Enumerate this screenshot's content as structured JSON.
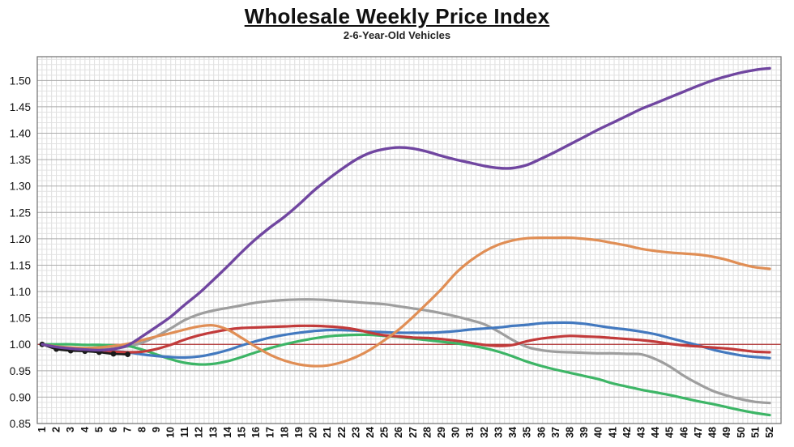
{
  "header": {
    "title": "Wholesale Weekly Price Index",
    "subtitle": "2-6-Year-Old Vehicles"
  },
  "chart_data": {
    "type": "line",
    "title": "Wholesale Weekly Price Index",
    "subtitle": "2-6-Year-Old Vehicles",
    "xlabel": "",
    "ylabel": "",
    "legend_position": "none",
    "grid": "on",
    "x_ticks": [
      1,
      2,
      3,
      4,
      5,
      6,
      7,
      8,
      9,
      10,
      11,
      12,
      13,
      14,
      15,
      16,
      17,
      18,
      19,
      20,
      21,
      22,
      23,
      24,
      25,
      26,
      27,
      28,
      29,
      30,
      31,
      32,
      33,
      34,
      35,
      36,
      37,
      38,
      39,
      40,
      41,
      42,
      43,
      44,
      45,
      46,
      47,
      48,
      49,
      50,
      51,
      52
    ],
    "y_ticks": [
      0.85,
      0.9,
      0.95,
      1.0,
      1.05,
      1.1,
      1.15,
      1.2,
      1.25,
      1.3,
      1.35,
      1.4,
      1.45,
      1.5
    ],
    "ylim": [
      0.85,
      1.545
    ],
    "minor_y_step": 0.01,
    "major_y_step": 0.05,
    "reference_line": {
      "y": 1.0,
      "color": "#b03030"
    },
    "series": [
      {
        "name": "gray",
        "color": "#9e9e9e",
        "width": 3.2,
        "markers": false,
        "values": [
          1.0,
          0.995,
          0.992,
          0.991,
          0.99,
          0.992,
          0.996,
          1.003,
          1.015,
          1.03,
          1.046,
          1.057,
          1.064,
          1.069,
          1.074,
          1.079,
          1.082,
          1.084,
          1.085,
          1.085,
          1.084,
          1.082,
          1.08,
          1.078,
          1.076,
          1.072,
          1.068,
          1.064,
          1.059,
          1.053,
          1.046,
          1.038,
          1.024,
          1.008,
          0.995,
          0.989,
          0.986,
          0.985,
          0.984,
          0.983,
          0.983,
          0.982,
          0.981,
          0.972,
          0.958,
          0.94,
          0.925,
          0.912,
          0.903,
          0.896,
          0.891,
          0.889
        ]
      },
      {
        "name": "green",
        "color": "#3db566",
        "width": 3.2,
        "markers": false,
        "values": [
          1.0,
          1.0,
          1.0,
          0.999,
          0.999,
          0.998,
          0.997,
          0.99,
          0.981,
          0.972,
          0.965,
          0.962,
          0.963,
          0.968,
          0.976,
          0.985,
          0.993,
          1.0,
          1.006,
          1.011,
          1.015,
          1.017,
          1.018,
          1.018,
          1.016,
          1.014,
          1.011,
          1.008,
          1.005,
          1.002,
          0.998,
          0.993,
          0.986,
          0.977,
          0.967,
          0.959,
          0.952,
          0.946,
          0.94,
          0.934,
          0.926,
          0.92,
          0.914,
          0.909,
          0.904,
          0.898,
          0.892,
          0.887,
          0.881,
          0.875,
          0.87,
          0.866
        ]
      },
      {
        "name": "blue",
        "color": "#4379bf",
        "width": 3.2,
        "markers": false,
        "values": [
          1.0,
          0.995,
          0.992,
          0.99,
          0.988,
          0.987,
          0.985,
          0.981,
          0.978,
          0.976,
          0.975,
          0.977,
          0.982,
          0.989,
          0.998,
          1.006,
          1.013,
          1.018,
          1.022,
          1.025,
          1.027,
          1.027,
          1.026,
          1.024,
          1.023,
          1.022,
          1.022,
          1.022,
          1.023,
          1.025,
          1.028,
          1.03,
          1.032,
          1.035,
          1.037,
          1.04,
          1.041,
          1.041,
          1.039,
          1.035,
          1.031,
          1.028,
          1.024,
          1.019,
          1.012,
          1.005,
          0.998,
          0.99,
          0.984,
          0.979,
          0.976,
          0.974
        ]
      },
      {
        "name": "red",
        "color": "#c23b3b",
        "width": 3.2,
        "markers": false,
        "values": [
          1.0,
          0.994,
          0.99,
          0.989,
          0.987,
          0.986,
          0.985,
          0.986,
          0.991,
          0.999,
          1.009,
          1.017,
          1.023,
          1.028,
          1.031,
          1.032,
          1.033,
          1.034,
          1.035,
          1.035,
          1.034,
          1.032,
          1.028,
          1.022,
          1.017,
          1.015,
          1.013,
          1.012,
          1.01,
          1.007,
          1.003,
          0.999,
          0.997,
          0.999,
          1.006,
          1.011,
          1.014,
          1.016,
          1.015,
          1.014,
          1.012,
          1.01,
          1.008,
          1.005,
          1.001,
          0.998,
          0.996,
          0.994,
          0.992,
          0.989,
          0.986,
          0.985
        ]
      },
      {
        "name": "orange",
        "color": "#e08e55",
        "width": 3.2,
        "markers": false,
        "values": [
          1.0,
          0.996,
          0.994,
          0.993,
          0.994,
          0.997,
          1.001,
          1.008,
          1.015,
          1.021,
          1.028,
          1.034,
          1.036,
          1.028,
          1.012,
          0.995,
          0.98,
          0.969,
          0.962,
          0.959,
          0.96,
          0.966,
          0.976,
          0.99,
          1.008,
          1.028,
          1.052,
          1.078,
          1.105,
          1.135,
          1.158,
          1.176,
          1.189,
          1.197,
          1.201,
          1.202,
          1.202,
          1.202,
          1.2,
          1.197,
          1.192,
          1.187,
          1.181,
          1.177,
          1.174,
          1.172,
          1.17,
          1.166,
          1.16,
          1.152,
          1.146,
          1.143
        ]
      },
      {
        "name": "black-markers",
        "color": "#1a1a1a",
        "width": 2.6,
        "markers": true,
        "values": [
          1.0,
          0.991,
          0.988,
          0.987,
          0.985,
          0.982,
          0.981
        ]
      },
      {
        "name": "purple",
        "color": "#7046a0",
        "width": 3.4,
        "markers": false,
        "values": [
          1.0,
          0.995,
          0.992,
          0.99,
          0.989,
          0.991,
          0.998,
          1.015,
          1.033,
          1.052,
          1.075,
          1.097,
          1.122,
          1.148,
          1.175,
          1.2,
          1.222,
          1.242,
          1.265,
          1.29,
          1.312,
          1.332,
          1.35,
          1.363,
          1.37,
          1.373,
          1.371,
          1.365,
          1.357,
          1.35,
          1.344,
          1.338,
          1.334,
          1.334,
          1.34,
          1.352,
          1.365,
          1.379,
          1.393,
          1.407,
          1.42,
          1.433,
          1.446,
          1.457,
          1.468,
          1.479,
          1.49,
          1.5,
          1.508,
          1.515,
          1.52,
          1.523
        ]
      }
    ]
  }
}
